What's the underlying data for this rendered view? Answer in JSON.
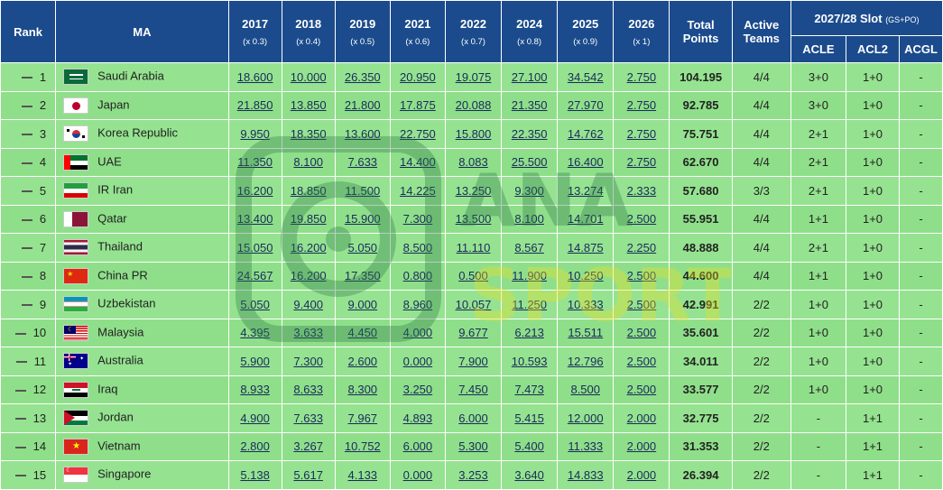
{
  "header": {
    "rank": "Rank",
    "ma": "MA",
    "years": [
      {
        "year": "2017",
        "mult": "(x 0.3)"
      },
      {
        "year": "2018",
        "mult": "(x 0.4)"
      },
      {
        "year": "2019",
        "mult": "(x 0.5)"
      },
      {
        "year": "2021",
        "mult": "(x 0.6)"
      },
      {
        "year": "2022",
        "mult": "(x 0.7)"
      },
      {
        "year": "2024",
        "mult": "(x 0.8)"
      },
      {
        "year": "2025",
        "mult": "(x 0.9)"
      },
      {
        "year": "2026",
        "mult": "(x 1)"
      }
    ],
    "total_line1": "Total",
    "total_line2": "Points",
    "active_line1": "Active",
    "active_line2": "Teams",
    "slot": "2027/28 Slot",
    "slot_sub": "(GS+PO)",
    "acle": "ACLE",
    "acl2": "ACL2",
    "acgl": "ACGL"
  },
  "rows": [
    {
      "rank": "1",
      "name": "Saudi Arabia",
      "flag": "saudi-arabia",
      "pts": [
        "18.600",
        "10.000",
        "26.350",
        "20.950",
        "19.075",
        "27.100",
        "34.542",
        "2.750"
      ],
      "total": "104.195",
      "active": "4/4",
      "acle": "3+0",
      "acl2": "1+0",
      "acgl": "-"
    },
    {
      "rank": "2",
      "name": "Japan",
      "flag": "japan",
      "pts": [
        "21.850",
        "13.850",
        "21.800",
        "17.875",
        "20.088",
        "21.350",
        "27.970",
        "2.750"
      ],
      "total": "92.785",
      "active": "4/4",
      "acle": "3+0",
      "acl2": "1+0",
      "acgl": "-"
    },
    {
      "rank": "3",
      "name": "Korea Republic",
      "flag": "korea",
      "pts": [
        "9.950",
        "18.350",
        "13.600",
        "22.750",
        "15.800",
        "22.350",
        "14.762",
        "2.750"
      ],
      "total": "75.751",
      "active": "4/4",
      "acle": "2+1",
      "acl2": "1+0",
      "acgl": "-"
    },
    {
      "rank": "4",
      "name": "UAE",
      "flag": "uae",
      "pts": [
        "11.350",
        "8.100",
        "7.633",
        "14.400",
        "8.083",
        "25.500",
        "16.400",
        "2.750"
      ],
      "total": "62.670",
      "active": "4/4",
      "acle": "2+1",
      "acl2": "1+0",
      "acgl": "-"
    },
    {
      "rank": "5",
      "name": "IR Iran",
      "flag": "iran",
      "pts": [
        "16.200",
        "18.850",
        "11.500",
        "14.225",
        "13.250",
        "9.300",
        "13.274",
        "2.333"
      ],
      "total": "57.680",
      "active": "3/3",
      "acle": "2+1",
      "acl2": "1+0",
      "acgl": "-"
    },
    {
      "rank": "6",
      "name": "Qatar",
      "flag": "qatar",
      "pts": [
        "13.400",
        "19.850",
        "15.900",
        "7.300",
        "13.500",
        "8.100",
        "14.701",
        "2.500"
      ],
      "total": "55.951",
      "active": "4/4",
      "acle": "1+1",
      "acl2": "1+0",
      "acgl": "-"
    },
    {
      "rank": "7",
      "name": "Thailand",
      "flag": "thailand",
      "pts": [
        "15.050",
        "16.200",
        "5.050",
        "8.500",
        "11.110",
        "8.567",
        "14.875",
        "2.250"
      ],
      "total": "48.888",
      "active": "4/4",
      "acle": "2+1",
      "acl2": "1+0",
      "acgl": "-"
    },
    {
      "rank": "8",
      "name": "China PR",
      "flag": "china",
      "pts": [
        "24.567",
        "16.200",
        "17.350",
        "0.800",
        "0.500",
        "11.900",
        "10.250",
        "2.500"
      ],
      "total": "44.600",
      "active": "4/4",
      "acle": "1+1",
      "acl2": "1+0",
      "acgl": "-"
    },
    {
      "rank": "9",
      "name": "Uzbekistan",
      "flag": "uzbekistan",
      "pts": [
        "5.050",
        "9.400",
        "9.000",
        "8.960",
        "10.057",
        "11.250",
        "10.333",
        "2.500"
      ],
      "total": "42.991",
      "active": "2/2",
      "acle": "1+0",
      "acl2": "1+0",
      "acgl": "-"
    },
    {
      "rank": "10",
      "name": "Malaysia",
      "flag": "malaysia",
      "pts": [
        "4.395",
        "3.633",
        "4.450",
        "4.000",
        "9.677",
        "6.213",
        "15.511",
        "2.500"
      ],
      "total": "35.601",
      "active": "2/2",
      "acle": "1+0",
      "acl2": "1+0",
      "acgl": "-"
    },
    {
      "rank": "11",
      "name": "Australia",
      "flag": "australia",
      "pts": [
        "5.900",
        "7.300",
        "2.600",
        "0.000",
        "7.900",
        "10.593",
        "12.796",
        "2.500"
      ],
      "total": "34.011",
      "active": "2/2",
      "acle": "1+0",
      "acl2": "1+0",
      "acgl": "-"
    },
    {
      "rank": "12",
      "name": "Iraq",
      "flag": "iraq",
      "pts": [
        "8.933",
        "8.633",
        "8.300",
        "3.250",
        "7.450",
        "7.473",
        "8.500",
        "2.500"
      ],
      "total": "33.577",
      "active": "2/2",
      "acle": "1+0",
      "acl2": "1+0",
      "acgl": "-"
    },
    {
      "rank": "13",
      "name": "Jordan",
      "flag": "jordan",
      "pts": [
        "4.900",
        "7.633",
        "7.967",
        "4.893",
        "6.000",
        "5.415",
        "12.000",
        "2.000"
      ],
      "total": "32.775",
      "active": "2/2",
      "acle": "-",
      "acl2": "1+1",
      "acgl": "-"
    },
    {
      "rank": "14",
      "name": "Vietnam",
      "flag": "vietnam",
      "pts": [
        "2.800",
        "3.267",
        "10.752",
        "6.000",
        "5.300",
        "5.400",
        "11.333",
        "2.000"
      ],
      "total": "31.353",
      "active": "2/2",
      "acle": "-",
      "acl2": "1+1",
      "acgl": "-"
    },
    {
      "rank": "15",
      "name": "Singapore",
      "flag": "singapore",
      "pts": [
        "5.138",
        "5.617",
        "4.133",
        "0.000",
        "3.253",
        "3.640",
        "14.833",
        "2.000"
      ],
      "total": "26.394",
      "active": "2/2",
      "acle": "-",
      "acl2": "1+1",
      "acgl": "-"
    }
  ],
  "watermark": {
    "line1": "ANA",
    "line2": "SPORT"
  },
  "colors": {
    "header_bg": "#1b4b8c",
    "row_bg": "#8fe08a",
    "link": "#1a2a5c"
  }
}
